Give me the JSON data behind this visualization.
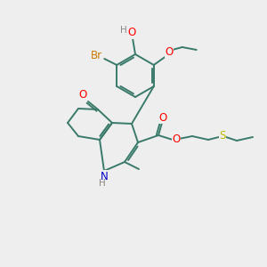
{
  "bg_color": "#eeeeee",
  "bond_color": "#3a7a6a",
  "atom_colors": {
    "O": "#ff0000",
    "N": "#0000cc",
    "Br": "#cc7700",
    "S": "#bbbb00",
    "H_gray": "#888888",
    "C": "#3a7a6a"
  },
  "fig_width": 3.0,
  "fig_height": 3.0,
  "dpi": 100
}
